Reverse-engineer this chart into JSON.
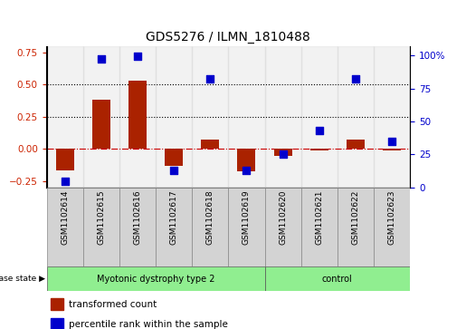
{
  "title": "GDS5276 / ILMN_1810488",
  "samples": [
    "GSM1102614",
    "GSM1102615",
    "GSM1102616",
    "GSM1102617",
    "GSM1102618",
    "GSM1102619",
    "GSM1102620",
    "GSM1102621",
    "GSM1102622",
    "GSM1102623"
  ],
  "transformed_count": [
    -0.17,
    0.38,
    0.53,
    -0.13,
    0.07,
    -0.175,
    -0.055,
    -0.01,
    0.07,
    -0.01
  ],
  "percentile_rank": [
    5,
    97,
    99,
    13,
    82,
    13,
    25,
    43,
    82,
    35
  ],
  "group1_label": "Myotonic dystrophy type 2",
  "group1_count": 6,
  "group2_label": "control",
  "group2_count": 4,
  "group_color": "#90EE90",
  "disease_state_label": "disease state",
  "bar_color": "#AA2200",
  "dot_color": "#0000CC",
  "ylim_left": [
    -0.3,
    0.8
  ],
  "ylim_right": [
    0,
    107
  ],
  "yticks_left": [
    -0.25,
    0,
    0.25,
    0.5,
    0.75
  ],
  "yticks_right": [
    0,
    25,
    50,
    75,
    100
  ],
  "hlines": [
    0.25,
    0.5
  ],
  "zero_line_color": "#CC0000",
  "dot_size": 30,
  "bar_width": 0.5,
  "col_bg_color": "#CCCCCC",
  "legend_red_label": "transformed count",
  "legend_blue_label": "percentile rank within the sample"
}
